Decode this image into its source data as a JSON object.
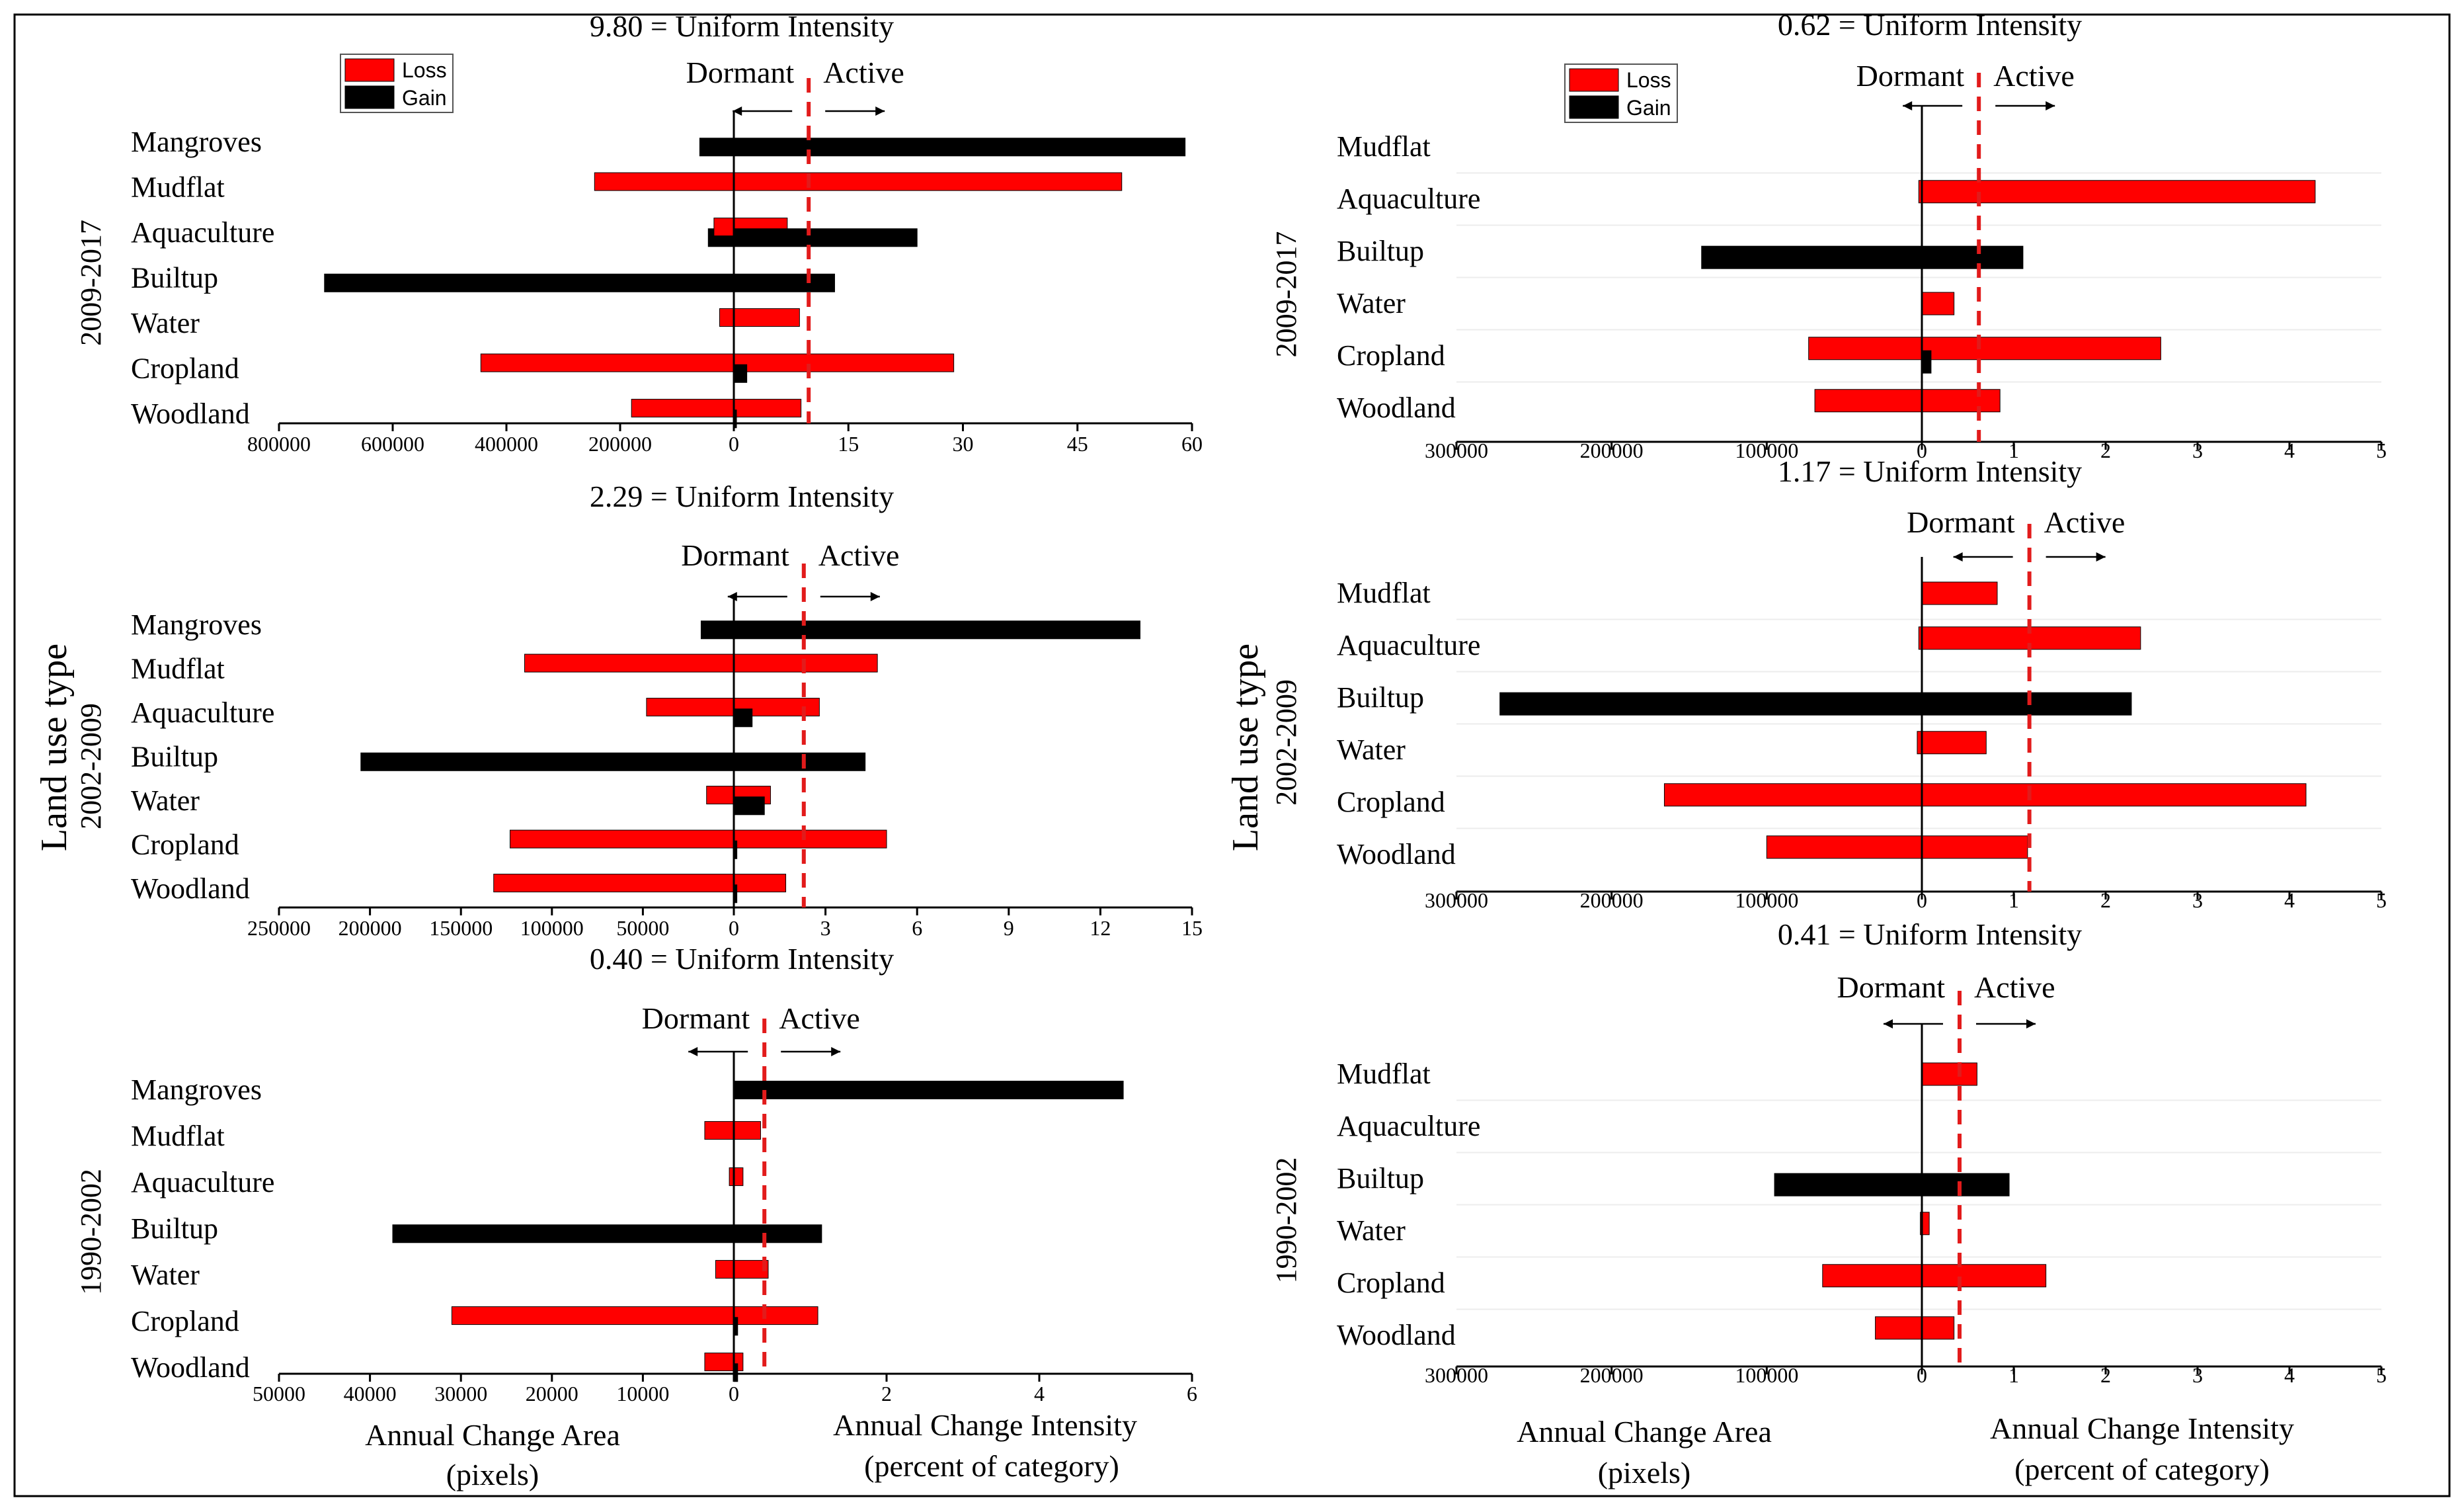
{
  "figure": {
    "y_axis_title": "Land use type",
    "x_axis_titles": {
      "area_line1": "Annual Change Area",
      "area_line2": "(pixels)",
      "intensity_line1": "Annual Change Intensity",
      "intensity_line2": "(percent of category)"
    },
    "legend": {
      "loss": "Loss",
      "gain": "Gain"
    },
    "dormant_label": "Dormant",
    "active_label": "Active",
    "colors": {
      "loss": "#ff0000",
      "gain": "#000000",
      "uniform_line": "#e21b1b",
      "frame": "#000000"
    }
  },
  "chart_data": [
    {
      "id": "left-2009-2017",
      "column": "left",
      "type": "bar",
      "orientation": "horizontal",
      "period": "2009-2017",
      "title": "9.80 = Uniform Intensity",
      "uniform": 9.8,
      "categories": [
        "Mangroves",
        "Mudflat",
        "Aquaculture",
        "Builtup",
        "Water",
        "Cropland",
        "Woodland"
      ],
      "area_axis": {
        "max": 800000,
        "ticks": [
          800000,
          600000,
          400000,
          200000
        ]
      },
      "intensity_axis": {
        "max": 60,
        "ticks": [
          0,
          15,
          30,
          45,
          60
        ]
      },
      "series": [
        {
          "name": "Gain",
          "area": [
            60000,
            null,
            45000,
            720000,
            null,
            null,
            null
          ]
        },
        {
          "name": "Loss",
          "area": [
            null,
            245000,
            35000,
            null,
            25000,
            445000,
            180000
          ]
        },
        {
          "name": "Loss",
          "intensity": [
            null,
            50.8,
            7.0,
            null,
            8.6,
            28.8,
            8.8
          ]
        },
        {
          "name": "Gain",
          "intensity": [
            59.1,
            null,
            24.0,
            13.2,
            null,
            1.7,
            0.2
          ]
        }
      ],
      "legend": true
    },
    {
      "id": "left-2002-2009",
      "column": "left",
      "type": "bar",
      "orientation": "horizontal",
      "period": "2002-2009",
      "title": "2.29 = Uniform Intensity",
      "uniform": 2.29,
      "categories": [
        "Mangroves",
        "Mudflat",
        "Aquaculture",
        "Builtup",
        "Water",
        "Cropland",
        "Woodland"
      ],
      "area_axis": {
        "max": 250000,
        "ticks": [
          250000,
          200000,
          150000,
          100000,
          50000
        ]
      },
      "intensity_axis": {
        "max": 15,
        "ticks": [
          0,
          3,
          6,
          9,
          12,
          15
        ]
      },
      "series": [
        {
          "name": "Gain",
          "area": [
            18000,
            null,
            null,
            205000,
            null,
            null,
            null
          ]
        },
        {
          "name": "Loss",
          "area": [
            null,
            115000,
            48000,
            null,
            15000,
            123000,
            132000
          ]
        },
        {
          "name": "Loss",
          "intensity": [
            null,
            4.7,
            2.8,
            null,
            1.2,
            5.0,
            1.7
          ]
        },
        {
          "name": "Gain",
          "intensity": [
            13.3,
            null,
            0.6,
            4.3,
            1.0,
            0.1,
            0.1
          ]
        }
      ],
      "legend": false
    },
    {
      "id": "left-1990-2002",
      "column": "left",
      "type": "bar",
      "orientation": "horizontal",
      "period": "1990-2002",
      "title": "0.40 = Uniform Intensity",
      "uniform": 0.4,
      "categories": [
        "Mangroves",
        "Mudflat",
        "Aquaculture",
        "Builtup",
        "Water",
        "Cropland",
        "Woodland"
      ],
      "area_axis": {
        "max": 50000,
        "ticks": [
          50000,
          40000,
          30000,
          20000,
          10000,
          0
        ]
      },
      "intensity_axis": {
        "max": 6,
        "ticks": [
          2,
          4,
          6
        ]
      },
      "series": [
        {
          "name": "Gain",
          "area": [
            null,
            null,
            null,
            37500,
            null,
            null,
            null
          ]
        },
        {
          "name": "Loss",
          "area": [
            null,
            3200,
            500,
            null,
            2000,
            31000,
            3200
          ]
        },
        {
          "name": "Loss",
          "intensity": [
            null,
            0.35,
            0.12,
            null,
            0.45,
            1.1,
            0.12
          ]
        },
        {
          "name": "Gain",
          "intensity": [
            5.1,
            null,
            null,
            1.15,
            null,
            0.05,
            0.05
          ]
        }
      ],
      "legend": false
    },
    {
      "id": "right-2009-2017",
      "column": "right",
      "type": "bar",
      "orientation": "horizontal",
      "period": "2009-2017",
      "title": "0.62 = Uniform Intensity",
      "uniform": 0.62,
      "categories": [
        "Mudflat",
        "Aquaculture",
        "Builtup",
        "Water",
        "Cropland",
        "Woodland"
      ],
      "area_axis": {
        "max": 300000,
        "ticks": [
          300000,
          200000,
          100000,
          0
        ]
      },
      "intensity_axis": {
        "max": 5,
        "ticks": [
          1,
          2,
          3,
          4,
          5
        ]
      },
      "series": [
        {
          "name": "Gain",
          "area": [
            null,
            null,
            142000,
            null,
            null,
            null
          ]
        },
        {
          "name": "Loss",
          "area": [
            null,
            2000,
            null,
            null,
            73000,
            69000
          ]
        },
        {
          "name": "Loss",
          "intensity": [
            null,
            4.28,
            null,
            0.35,
            2.6,
            0.85
          ]
        },
        {
          "name": "Gain",
          "intensity": [
            null,
            null,
            1.1,
            null,
            0.1,
            null
          ]
        }
      ],
      "legend": true
    },
    {
      "id": "right-2002-2009",
      "column": "right",
      "type": "bar",
      "orientation": "horizontal",
      "period": "2002-2009",
      "title": "1.17 = Uniform Intensity",
      "uniform": 1.17,
      "categories": [
        "Mudflat",
        "Aquaculture",
        "Builtup",
        "Water",
        "Cropland",
        "Woodland"
      ],
      "area_axis": {
        "max": 300000,
        "ticks": [
          300000,
          200000,
          100000,
          0
        ]
      },
      "intensity_axis": {
        "max": 5,
        "ticks": [
          1,
          2,
          3,
          4,
          5
        ]
      },
      "series": [
        {
          "name": "Gain",
          "area": [
            null,
            null,
            272000,
            null,
            null,
            null
          ]
        },
        {
          "name": "Loss",
          "area": [
            null,
            2000,
            null,
            3000,
            166000,
            100000
          ]
        },
        {
          "name": "Loss",
          "intensity": [
            0.82,
            2.38,
            null,
            0.7,
            4.18,
            1.15
          ]
        },
        {
          "name": "Gain",
          "intensity": [
            null,
            null,
            2.28,
            null,
            null,
            null
          ]
        }
      ],
      "legend": false
    },
    {
      "id": "right-1990-2002",
      "column": "right",
      "type": "bar",
      "orientation": "horizontal",
      "period": "1990-2002",
      "title": "0.41 = Uniform Intensity",
      "uniform": 0.41,
      "categories": [
        "Mudflat",
        "Aquaculture",
        "Builtup",
        "Water",
        "Cropland",
        "Woodland"
      ],
      "area_axis": {
        "max": 300000,
        "ticks": [
          300000,
          200000,
          100000,
          0
        ]
      },
      "intensity_axis": {
        "max": 5,
        "ticks": [
          1,
          2,
          3,
          4,
          5
        ]
      },
      "series": [
        {
          "name": "Gain",
          "area": [
            null,
            null,
            95000,
            null,
            null,
            null
          ]
        },
        {
          "name": "Loss",
          "area": [
            null,
            null,
            null,
            1000,
            64000,
            30000
          ]
        },
        {
          "name": "Loss",
          "intensity": [
            0.6,
            null,
            null,
            0.08,
            1.35,
            0.35
          ]
        },
        {
          "name": "Gain",
          "intensity": [
            null,
            null,
            0.95,
            null,
            null,
            null
          ]
        }
      ],
      "legend": false
    }
  ]
}
